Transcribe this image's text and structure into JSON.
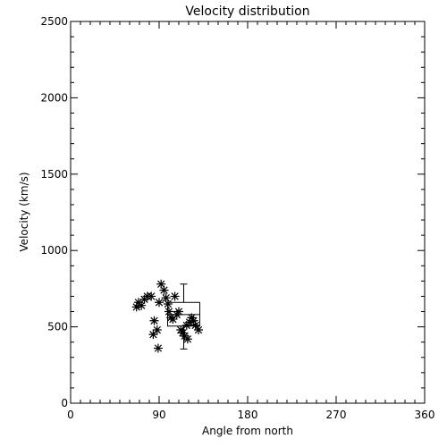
{
  "chart_data": {
    "type": "scatter",
    "title": "Velocity distribution",
    "xlabel": "Angle from north",
    "ylabel": "Velocity (km/s)",
    "xlim": [
      0,
      360
    ],
    "ylim": [
      0,
      2500
    ],
    "xticks": [
      0,
      90,
      180,
      270,
      360
    ],
    "xtick_labels": [
      "0",
      "90",
      "180",
      "270",
      "360"
    ],
    "yticks": [
      0,
      500,
      1000,
      1500,
      2000,
      2500
    ],
    "ytick_labels": [
      "0",
      "500",
      "1000",
      "1500",
      "2000",
      "2500"
    ],
    "grid": false,
    "marker": "asterisk",
    "color": "#000000",
    "points": [
      {
        "x": 67,
        "y": 630
      },
      {
        "x": 69,
        "y": 660
      },
      {
        "x": 72,
        "y": 640
      },
      {
        "x": 75,
        "y": 680
      },
      {
        "x": 78,
        "y": 700
      },
      {
        "x": 82,
        "y": 700
      },
      {
        "x": 85,
        "y": 540
      },
      {
        "x": 84,
        "y": 450
      },
      {
        "x": 88,
        "y": 480
      },
      {
        "x": 89,
        "y": 360
      },
      {
        "x": 90,
        "y": 660
      },
      {
        "x": 92,
        "y": 780
      },
      {
        "x": 95,
        "y": 740
      },
      {
        "x": 97,
        "y": 690
      },
      {
        "x": 99,
        "y": 650
      },
      {
        "x": 100,
        "y": 600
      },
      {
        "x": 102,
        "y": 560
      },
      {
        "x": 104,
        "y": 550
      },
      {
        "x": 106,
        "y": 700
      },
      {
        "x": 108,
        "y": 580
      },
      {
        "x": 110,
        "y": 600
      },
      {
        "x": 112,
        "y": 480
      },
      {
        "x": 114,
        "y": 460
      },
      {
        "x": 116,
        "y": 440
      },
      {
        "x": 118,
        "y": 510
      },
      {
        "x": 119,
        "y": 420
      },
      {
        "x": 121,
        "y": 530
      },
      {
        "x": 123,
        "y": 560
      },
      {
        "x": 125,
        "y": 540
      },
      {
        "x": 127,
        "y": 510
      },
      {
        "x": 130,
        "y": 480
      }
    ],
    "boxplot": {
      "x": 115,
      "whisker_low": 355,
      "q1": 505,
      "median": 580,
      "q3": 660,
      "whisker_high": 780
    }
  }
}
